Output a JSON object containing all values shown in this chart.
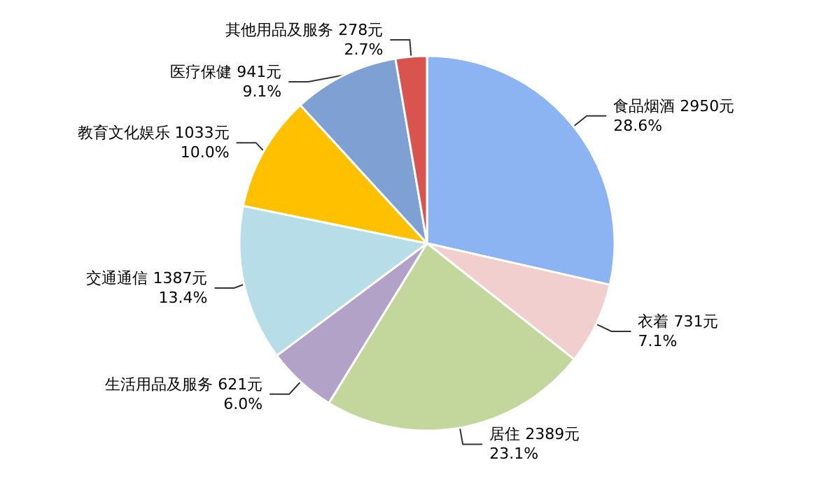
{
  "chart_data": {
    "type": "pie",
    "categories": [
      "食品烟酒",
      "衣着",
      "居住",
      "生活用品及服务",
      "交通通信",
      "教育文化娱乐",
      "医疗保健",
      "其他用品及服务"
    ],
    "values": [
      2950,
      731,
      2389,
      621,
      1387,
      1033,
      941,
      278
    ],
    "value_labels": [
      "2950元\n28.6%",
      "731元\n7.1%",
      "2389元\n23.1%",
      "621元\n6.0%",
      "1387元\n13.4%",
      "1033元\n10.0%",
      "941元\n9.1%",
      "278元\n2.7%"
    ],
    "colors": [
      "#8db4f2",
      "#f2cfcf",
      "#c3d69b",
      "#b3a2c7",
      "#b7dee8",
      "#ffc000",
      "#7ea0d2",
      "#d9534f"
    ],
    "legend": false
  }
}
